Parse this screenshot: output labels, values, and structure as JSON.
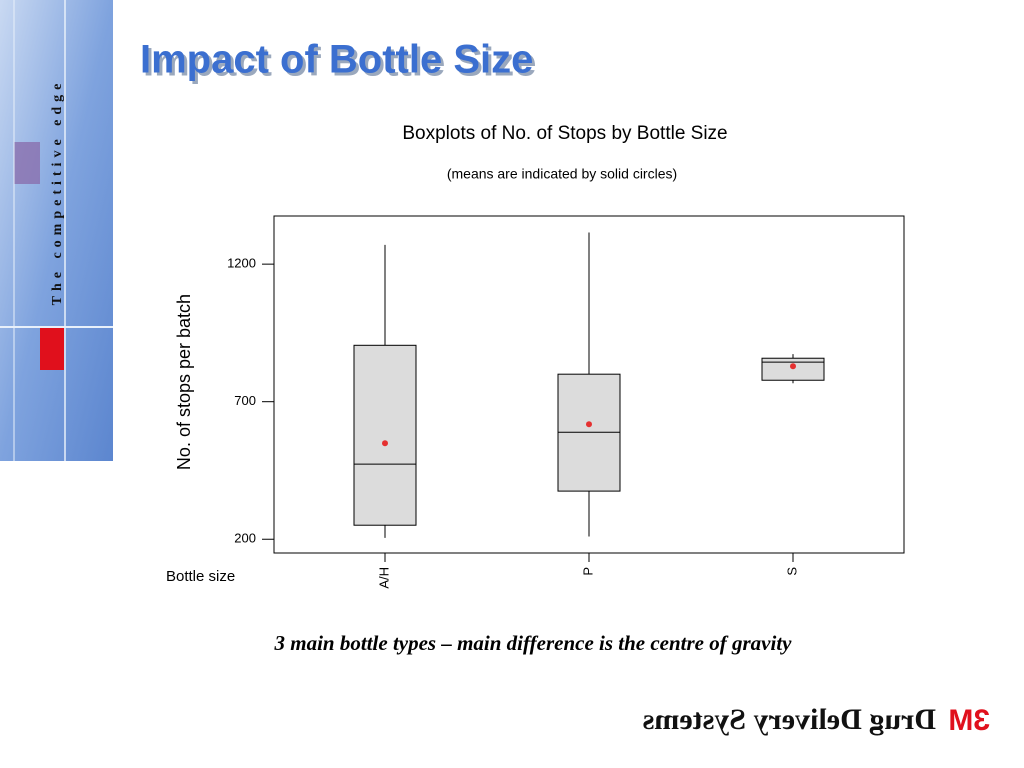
{
  "slide": {
    "title": "Impact of Bottle Size",
    "sidebar": "The competitive edge",
    "caption": "3 main bottle types – main difference is the centre of gravity",
    "logo_mark": "3M",
    "logo_text": "Drug Delivery Systems"
  },
  "chart_data": {
    "type": "boxplot",
    "title": "Boxplots of No. of Stops by Bottle Size",
    "subtitle": "(means are indicated by solid circles)",
    "x_label": "Bottle size",
    "y_label": "No. of stops per batch",
    "categories": [
      "A/H",
      "P",
      "S"
    ],
    "boxes": [
      {
        "min": 205,
        "q1": 251,
        "median": 473,
        "q3": 905,
        "max": 1270,
        "mean": 549
      },
      {
        "min": 210,
        "q1": 375,
        "median": 589,
        "q3": 800,
        "max": 1315,
        "mean": 618
      },
      {
        "min": 767,
        "q1": 778,
        "median": 844,
        "q3": 858,
        "max": 873,
        "mean": 829
      }
    ],
    "box_color": "#dcdcdc",
    "mean_color": "#e53030",
    "ylim": [
      150,
      1375
    ],
    "yticks": [
      200,
      700,
      1200
    ]
  }
}
